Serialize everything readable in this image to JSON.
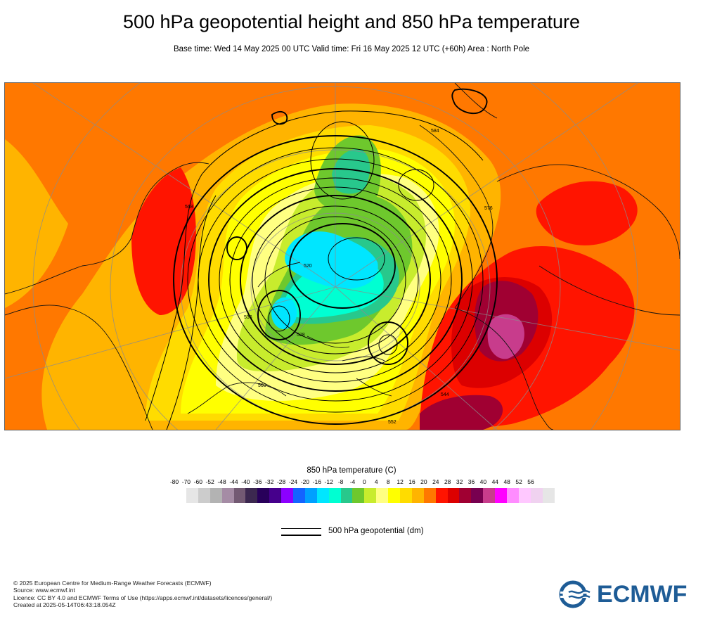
{
  "header": {
    "title": "500 hPa geopotential height and 850 hPa temperature",
    "subtitle": "Base time: Wed 14 May 2025 00 UTC Valid time: Fri 16 May 2025 12 UTC (+60h) Area : North Pole"
  },
  "map": {
    "contour_labels": [
      "584",
      "576",
      "568",
      "560",
      "552",
      "544",
      "536",
      "528",
      "520"
    ]
  },
  "temperature_legend": {
    "title": "850 hPa temperature (C)",
    "ticks": [
      "-80",
      "-70",
      "-60",
      "-52",
      "-48",
      "-44",
      "-40",
      "-36",
      "-32",
      "-28",
      "-24",
      "-20",
      "-16",
      "-12",
      "-8",
      "-4",
      "0",
      "4",
      "8",
      "12",
      "16",
      "20",
      "24",
      "28",
      "32",
      "36",
      "40",
      "44",
      "48",
      "52",
      "56"
    ],
    "colors": [
      "#e6e6e6",
      "#cccccc",
      "#b3b3b3",
      "#a58ca5",
      "#735a73",
      "#3c2850",
      "#28005a",
      "#46008c",
      "#8c00ff",
      "#1464ff",
      "#00a0ff",
      "#00e6ff",
      "#00ffd2",
      "#28c88c",
      "#6ec82d",
      "#c8ec2d",
      "#ffff82",
      "#ffff00",
      "#ffdc00",
      "#ffb400",
      "#ff7800",
      "#ff1400",
      "#dc0000",
      "#a00032",
      "#780050",
      "#c83c8c",
      "#ff00ff",
      "#ff8cff",
      "#ffc8ff",
      "#f0d2f0",
      "#e6e6e6"
    ]
  },
  "geopotential_legend": {
    "label": "500 hPa geopotential (dm)"
  },
  "footer": {
    "lines": [
      "© 2025 European Centre for Medium-Range Weather Forecasts (ECMWF)",
      "Source: www.ecmwf.int",
      "Licence: CC BY 4.0 and ECMWF Terms of Use (https://apps.ecmwf.int/datasets/licences/general/)",
      "Created at 2025-05-14T06:43:18.054Z"
    ]
  },
  "logo": {
    "text": "ECMWF",
    "color": "#1e5c96"
  }
}
